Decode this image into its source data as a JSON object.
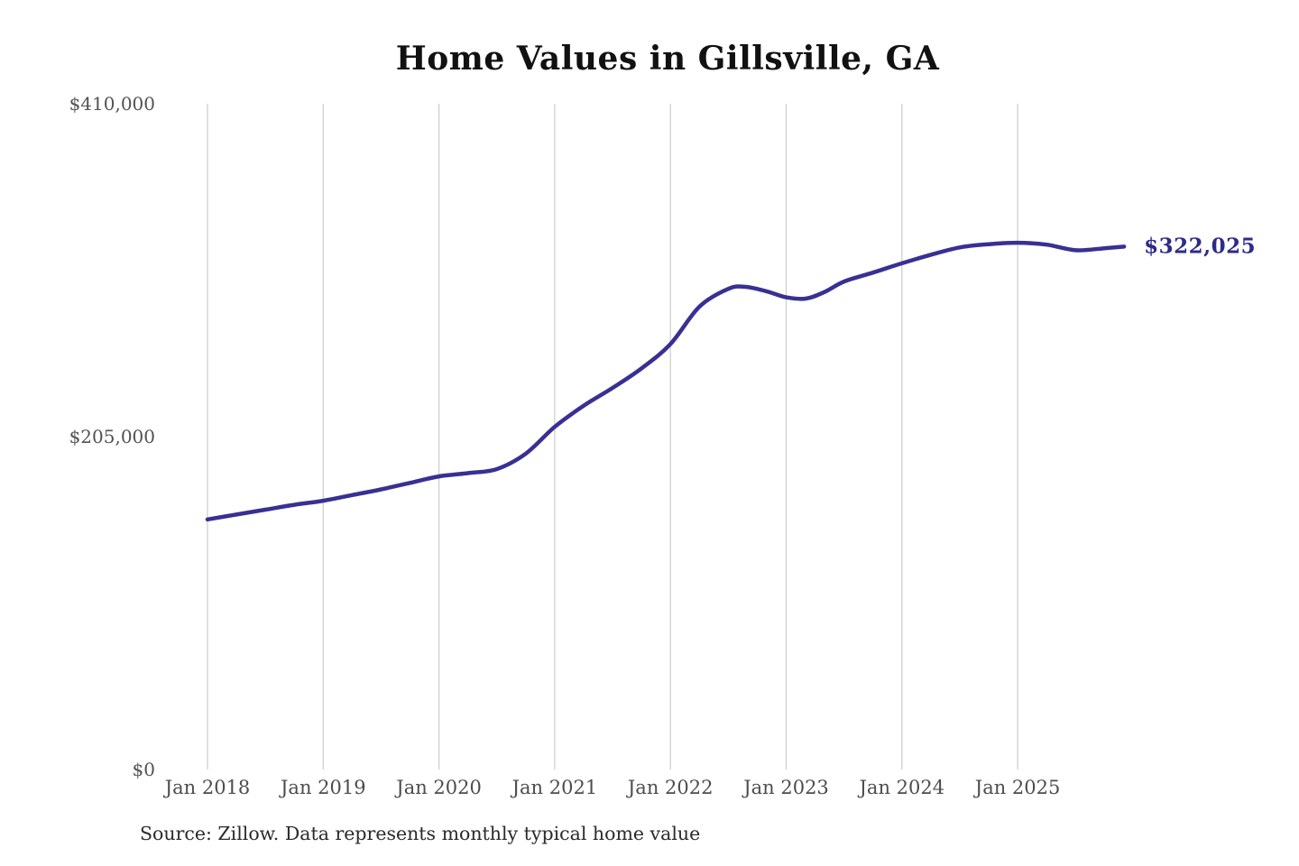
{
  "title": "Home Values in Gillsville, GA",
  "source_note": "Source: Zillow. Data represents monthly typical home value",
  "colors": {
    "line": "#383092",
    "final_label": "#2e2b88",
    "gridline": "#cccccc",
    "y_tick_label": "#525252",
    "x_tick_label": "#4d4d4d",
    "title": "#111111",
    "source": "#2a2a2a",
    "background": "#ffffff"
  },
  "chart_data": {
    "type": "line",
    "title": "Home Values in Gillsville, GA",
    "xlabel": "",
    "ylabel": "",
    "grid": "vertical-only",
    "legend": false,
    "ylim": [
      0,
      410000
    ],
    "xlim": [
      2018.0,
      2025.92
    ],
    "y_ticks": [
      {
        "label": "$0",
        "value": 0
      },
      {
        "label": "$205,000",
        "value": 205000
      },
      {
        "label": "$410,000",
        "value": 410000
      }
    ],
    "x_ticks": [
      {
        "label": "Jan 2018",
        "year": 2018
      },
      {
        "label": "Jan 2019",
        "year": 2019
      },
      {
        "label": "Jan 2020",
        "year": 2020
      },
      {
        "label": "Jan 2021",
        "year": 2021
      },
      {
        "label": "Jan 2022",
        "year": 2022
      },
      {
        "label": "Jan 2023",
        "year": 2023
      },
      {
        "label": "Jan 2024",
        "year": 2024
      },
      {
        "label": "Jan 2025",
        "year": 2025
      }
    ],
    "series": [
      {
        "name": "Monthly typical home value",
        "points": [
          [
            2018.0,
            154000
          ],
          [
            2018.25,
            157000
          ],
          [
            2018.5,
            160000
          ],
          [
            2018.75,
            163000
          ],
          [
            2019.0,
            165500
          ],
          [
            2019.25,
            169000
          ],
          [
            2019.5,
            172500
          ],
          [
            2019.75,
            176500
          ],
          [
            2020.0,
            180500
          ],
          [
            2020.25,
            182500
          ],
          [
            2020.5,
            185000
          ],
          [
            2020.75,
            194500
          ],
          [
            2021.0,
            211000
          ],
          [
            2021.25,
            224000
          ],
          [
            2021.5,
            235000
          ],
          [
            2021.75,
            247000
          ],
          [
            2022.0,
            262000
          ],
          [
            2022.25,
            285000
          ],
          [
            2022.5,
            296000
          ],
          [
            2022.65,
            297200
          ],
          [
            2022.83,
            294500
          ],
          [
            2023.0,
            290800
          ],
          [
            2023.17,
            290000
          ],
          [
            2023.33,
            294000
          ],
          [
            2023.5,
            300500
          ],
          [
            2023.75,
            306000
          ],
          [
            2024.0,
            311700
          ],
          [
            2024.25,
            317000
          ],
          [
            2024.5,
            321500
          ],
          [
            2024.75,
            323500
          ],
          [
            2025.0,
            324400
          ],
          [
            2025.25,
            323200
          ],
          [
            2025.5,
            319800
          ],
          [
            2025.75,
            321000
          ],
          [
            2025.92,
            322025
          ]
        ]
      }
    ],
    "annotation": {
      "label": "$322,025",
      "x": 2025.92,
      "value": 322025
    }
  }
}
